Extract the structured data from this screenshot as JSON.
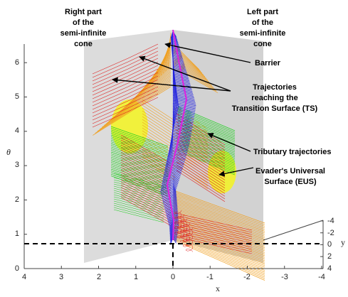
{
  "labels": {
    "right_part": [
      "Right part",
      "of the",
      "semi-infinite",
      "cone"
    ],
    "left_part": [
      "Left part",
      "of the",
      "semi-infinite",
      "cone"
    ],
    "barrier": "Barrier",
    "trajectories_ts": [
      "Trajectories",
      "reaching the",
      "Transition Surface (TS)"
    ],
    "tributary": "Tributary trajectories",
    "eus": [
      "Evader's Universal",
      "Surface (EUS)"
    ]
  },
  "axes": {
    "x_title": "x",
    "y_title": "y",
    "theta_title": "θ",
    "x_ticks": [
      "4",
      "3",
      "2",
      "1",
      "0",
      "-1",
      "-2",
      "-3",
      "-4"
    ],
    "theta_ticks": [
      "0",
      "1",
      "2",
      "3",
      "4",
      "5",
      "6"
    ],
    "y_ticks": [
      "-4",
      "-2",
      "0",
      "2",
      "4"
    ]
  },
  "colors": {
    "cone": "#dcdcdc",
    "barrier_blue": "#1f1fe0",
    "barrier_magenta": "#e020e0",
    "orange": "#f0a020",
    "red": "#e02020",
    "green": "#20d020",
    "yellow": "#f4f420"
  }
}
